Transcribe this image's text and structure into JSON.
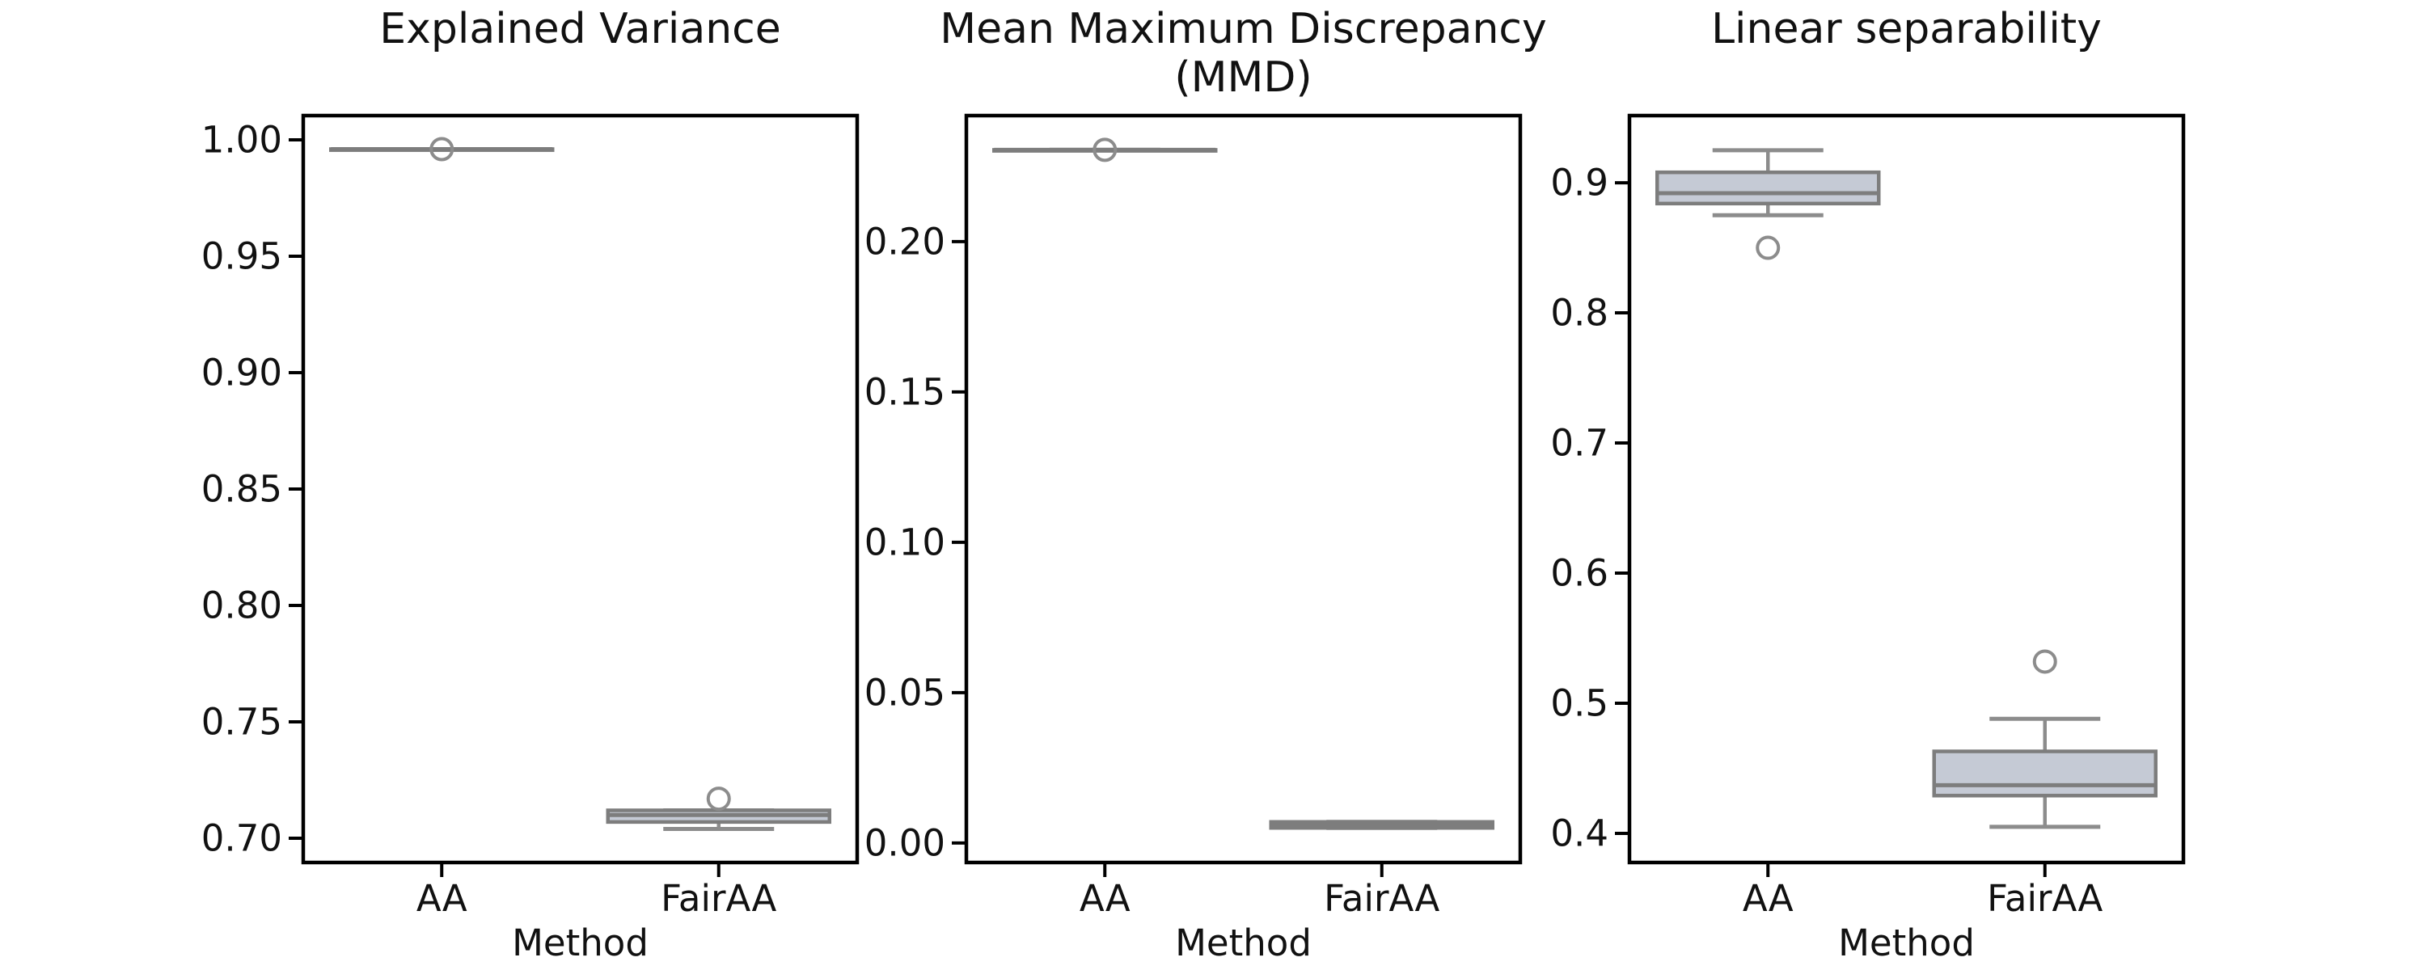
{
  "figure": {
    "xlabel": "Method",
    "background": "#ffffff",
    "colors": {
      "box_fill": "#c5cad5",
      "box_edge": "#7d7d7d",
      "whisker": "#8c8c8c",
      "flier_edge": "#8c8c8c",
      "spine": "#000000",
      "text": "#111111"
    }
  },
  "chart_data": [
    {
      "type": "box",
      "title": "Explained Variance",
      "xlabel": "Method",
      "categories": [
        "AA",
        "FairAA"
      ],
      "ylim": [
        0.6896,
        1.0104
      ],
      "grid": false,
      "legend": null,
      "yticks": [
        {
          "v": 1.0,
          "label": "1.00"
        },
        {
          "v": 0.95,
          "label": "0.95"
        },
        {
          "v": 0.9,
          "label": "0.90"
        },
        {
          "v": 0.85,
          "label": "0.85"
        },
        {
          "v": 0.8,
          "label": "0.80"
        },
        {
          "v": 0.75,
          "label": "0.75"
        },
        {
          "v": 0.7,
          "label": "0.70"
        }
      ],
      "series": [
        {
          "name": "AA",
          "whislo": 0.996,
          "q1": 0.996,
          "med": 0.996,
          "q3": 0.996,
          "whishi": 0.996,
          "fliers": [
            0.996
          ]
        },
        {
          "name": "FairAA",
          "whislo": 0.704,
          "q1": 0.707,
          "med": 0.71,
          "q3": 0.712,
          "whishi": 0.712,
          "fliers": [
            0.717
          ]
        }
      ]
    },
    {
      "type": "box",
      "title": "Mean Maximum Discrepancy\n(MMD)",
      "xlabel": "Method",
      "categories": [
        "AA",
        "FairAA"
      ],
      "ylim": [
        -0.0065,
        0.2419
      ],
      "grid": false,
      "legend": null,
      "yticks": [
        {
          "v": 0.2,
          "label": "0.20"
        },
        {
          "v": 0.15,
          "label": "0.15"
        },
        {
          "v": 0.1,
          "label": "0.10"
        },
        {
          "v": 0.05,
          "label": "0.05"
        },
        {
          "v": 0.0,
          "label": "0.00"
        }
      ],
      "series": [
        {
          "name": "AA",
          "whislo": 0.2305,
          "q1": 0.2305,
          "med": 0.2305,
          "q3": 0.2305,
          "whishi": 0.2305,
          "fliers": [
            0.2305
          ]
        },
        {
          "name": "FairAA",
          "whislo": 0.005,
          "q1": 0.005,
          "med": 0.006,
          "q3": 0.007,
          "whishi": 0.007,
          "fliers": []
        }
      ]
    },
    {
      "type": "box",
      "title": "Linear separability",
      "xlabel": "Method",
      "categories": [
        "AA",
        "FairAA"
      ],
      "ylim": [
        0.3776,
        0.9516
      ],
      "grid": false,
      "legend": null,
      "yticks": [
        {
          "v": 0.9,
          "label": "0.9"
        },
        {
          "v": 0.8,
          "label": "0.8"
        },
        {
          "v": 0.7,
          "label": "0.7"
        },
        {
          "v": 0.6,
          "label": "0.6"
        },
        {
          "v": 0.5,
          "label": "0.5"
        },
        {
          "v": 0.4,
          "label": "0.4"
        }
      ],
      "series": [
        {
          "name": "AA",
          "whislo": 0.875,
          "q1": 0.884,
          "med": 0.892,
          "q3": 0.908,
          "whishi": 0.925,
          "fliers": [
            0.85
          ]
        },
        {
          "name": "FairAA",
          "whislo": 0.405,
          "q1": 0.429,
          "med": 0.437,
          "q3": 0.463,
          "whishi": 0.488,
          "fliers": [
            0.532
          ]
        }
      ]
    }
  ]
}
